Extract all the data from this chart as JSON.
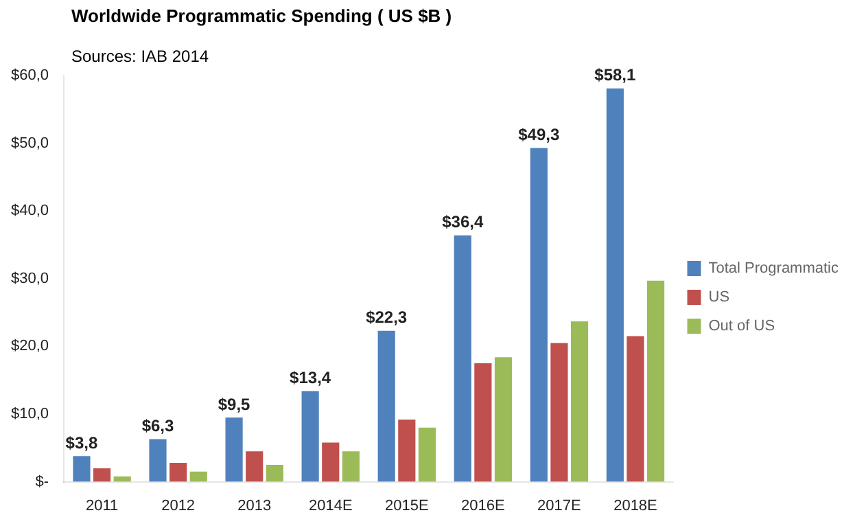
{
  "chart_data": {
    "type": "bar",
    "title": "Worldwide Programmatic Spending ( US $B )",
    "annotations": [
      "Sources: IAB 2014"
    ],
    "categories": [
      "2011",
      "2012",
      "2013",
      "2014E",
      "2015E",
      "2016E",
      "2017E",
      "2018E"
    ],
    "series": [
      {
        "name": "Total Programmatic",
        "color": "#4f81bd",
        "values": [
          3.8,
          6.3,
          9.5,
          13.4,
          22.3,
          36.4,
          49.3,
          58.1
        ],
        "value_labels": [
          "$3,8",
          "$6,3",
          "$9,5",
          "$13,4",
          "$22,3",
          "$36,4",
          "$49,3",
          "$58,1"
        ]
      },
      {
        "name": "US",
        "color": "#c0504d",
        "values": [
          2.0,
          2.8,
          4.5,
          5.8,
          9.2,
          17.5,
          20.5,
          21.5
        ]
      },
      {
        "name": "Out of US",
        "color": "#9bbb59",
        "values": [
          0.8,
          1.5,
          2.5,
          4.5,
          8,
          18.4,
          23.7,
          29.7
        ]
      }
    ],
    "ylim": [
      0,
      60
    ],
    "yticks": [
      {
        "value": 0,
        "label": "$-"
      },
      {
        "value": 10,
        "label": "$10,0"
      },
      {
        "value": 20,
        "label": "$20,0"
      },
      {
        "value": 30,
        "label": "$30,0"
      },
      {
        "value": 40,
        "label": "$40,0"
      },
      {
        "value": 50,
        "label": "$50,0"
      },
      {
        "value": 60,
        "label": "$60,0"
      }
    ],
    "grid": false,
    "legend": "right"
  }
}
